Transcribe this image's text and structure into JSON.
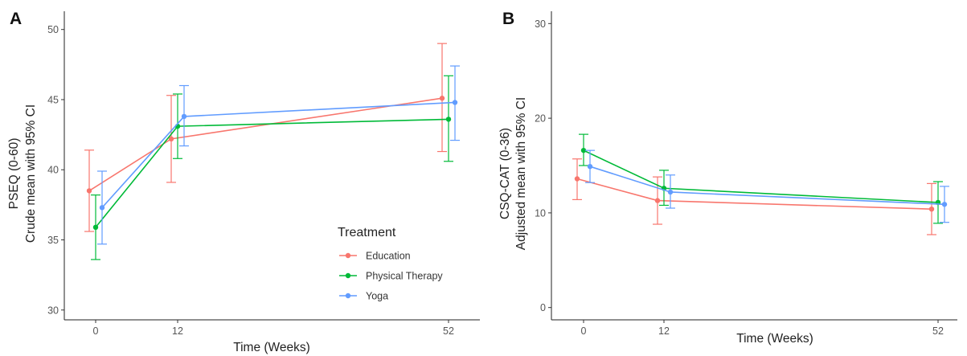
{
  "chart_data": [
    {
      "panel": "A",
      "type": "line",
      "xlabel": "Time (Weeks)",
      "ylabel": "PSEQ (0-60)",
      "ylabel2": "Crude mean with 95% CI",
      "x": [
        0,
        12,
        52
      ],
      "xticks": [
        "0",
        "12",
        "52"
      ],
      "ylim": [
        29.3,
        51.3
      ],
      "yticks": [
        30,
        35,
        40,
        45,
        50
      ],
      "grid": false,
      "series": [
        {
          "name": "Education",
          "color": "#F8766D",
          "offset": -1,
          "values": [
            38.5,
            42.2,
            45.1
          ],
          "lower": [
            35.6,
            39.1,
            41.3
          ],
          "upper": [
            41.4,
            45.3,
            49.0
          ]
        },
        {
          "name": "Physical Therapy",
          "color": "#00BA38",
          "offset": 0,
          "values": [
            35.9,
            43.1,
            43.6
          ],
          "lower": [
            33.6,
            40.8,
            40.6
          ],
          "upper": [
            38.2,
            45.4,
            46.7
          ]
        },
        {
          "name": "Yoga",
          "color": "#619CFF",
          "offset": 1,
          "values": [
            37.3,
            43.8,
            44.8
          ],
          "lower": [
            34.7,
            41.7,
            42.1
          ],
          "upper": [
            39.9,
            46.0,
            47.4
          ]
        }
      ]
    },
    {
      "panel": "B",
      "type": "line",
      "xlabel": "Time (Weeks)",
      "ylabel": "CSQ-CAT (0-36)",
      "ylabel2": "Adjusted mean with 95% CI",
      "x": [
        0,
        12,
        52
      ],
      "xticks": [
        "0",
        "12",
        "52"
      ],
      "ylim": [
        -1.3,
        31.3
      ],
      "yticks": [
        0,
        10,
        20,
        30
      ],
      "grid": false,
      "series": [
        {
          "name": "Education",
          "color": "#F8766D",
          "offset": -1,
          "values": [
            13.6,
            11.3,
            10.4
          ],
          "lower": [
            11.4,
            8.8,
            7.7
          ],
          "upper": [
            15.7,
            13.8,
            13.1
          ]
        },
        {
          "name": "Physical Therapy",
          "color": "#00BA38",
          "offset": 0,
          "values": [
            16.6,
            12.6,
            11.1
          ],
          "lower": [
            15.0,
            10.8,
            8.9
          ],
          "upper": [
            18.3,
            14.5,
            13.3
          ]
        },
        {
          "name": "Yoga",
          "color": "#619CFF",
          "offset": 1,
          "values": [
            14.9,
            12.2,
            10.9
          ],
          "lower": [
            13.2,
            10.5,
            9.0
          ],
          "upper": [
            16.6,
            14.0,
            12.8
          ]
        }
      ]
    }
  ],
  "legend": {
    "title": "Treatment",
    "items": [
      {
        "label": "Education",
        "color": "#F8766D"
      },
      {
        "label": "Physical Therapy",
        "color": "#00BA38"
      },
      {
        "label": "Yoga",
        "color": "#619CFF"
      }
    ]
  }
}
